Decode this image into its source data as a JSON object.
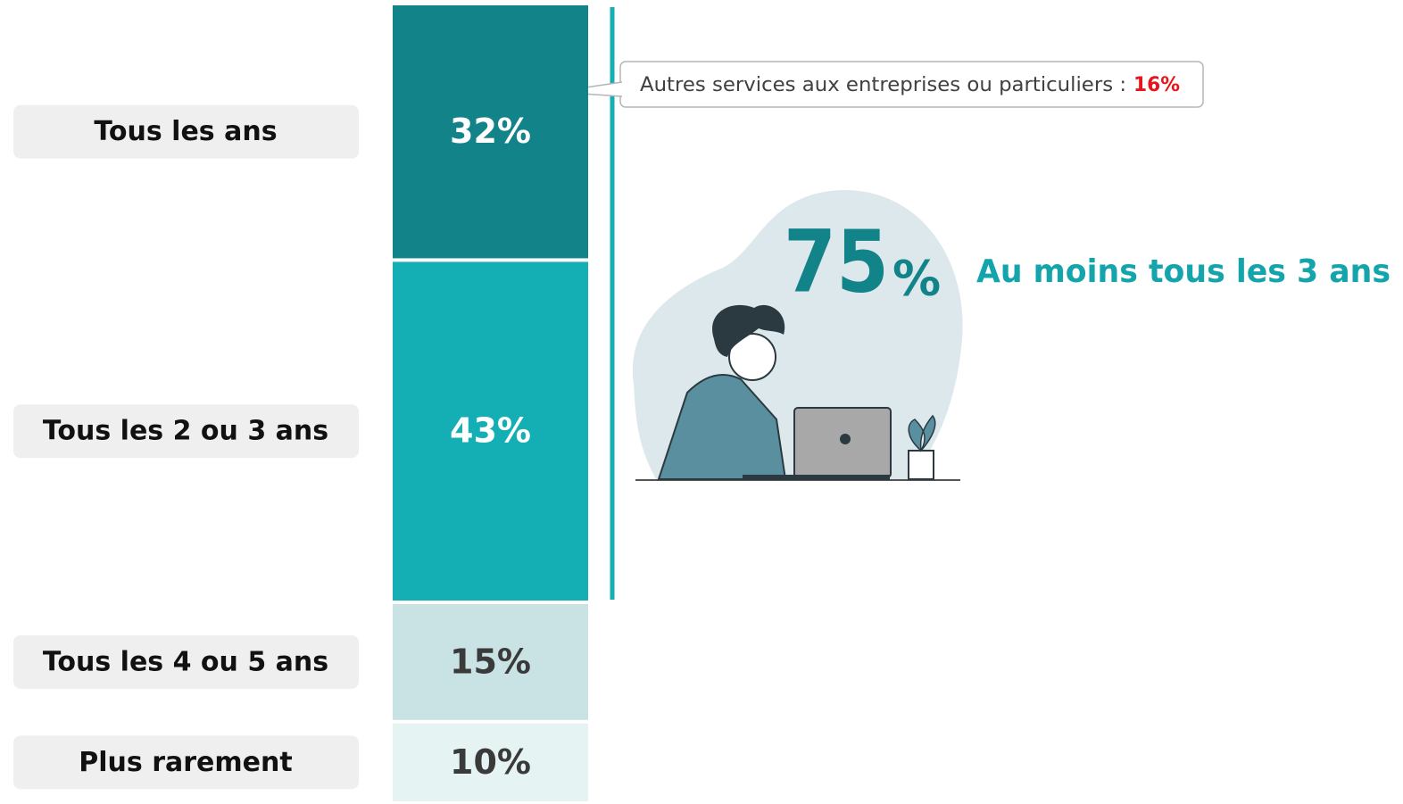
{
  "chart_data": {
    "type": "stacked-column",
    "categories": [
      "Tous les ans",
      "Tous les 2 ou 3 ans",
      "Tous les 4 ou 5 ans",
      "Plus rarement"
    ],
    "values": [
      32,
      43,
      15,
      10
    ],
    "value_labels": [
      "32%",
      "43%",
      "15%",
      "10%"
    ],
    "colors": [
      "#128389",
      "#13afb5",
      "#c9e3e5",
      "#e6f3f3"
    ],
    "label_colors": [
      "#ffffff",
      "#ffffff",
      "#3a3a3a",
      "#3a3a3a"
    ],
    "callout_text": "Autres services aux entreprises ou particuliers :",
    "callout_value": "16%",
    "highlight_number": "75",
    "highlight_unit": "%",
    "highlight_text": "Au moins tous les 3 ans"
  }
}
